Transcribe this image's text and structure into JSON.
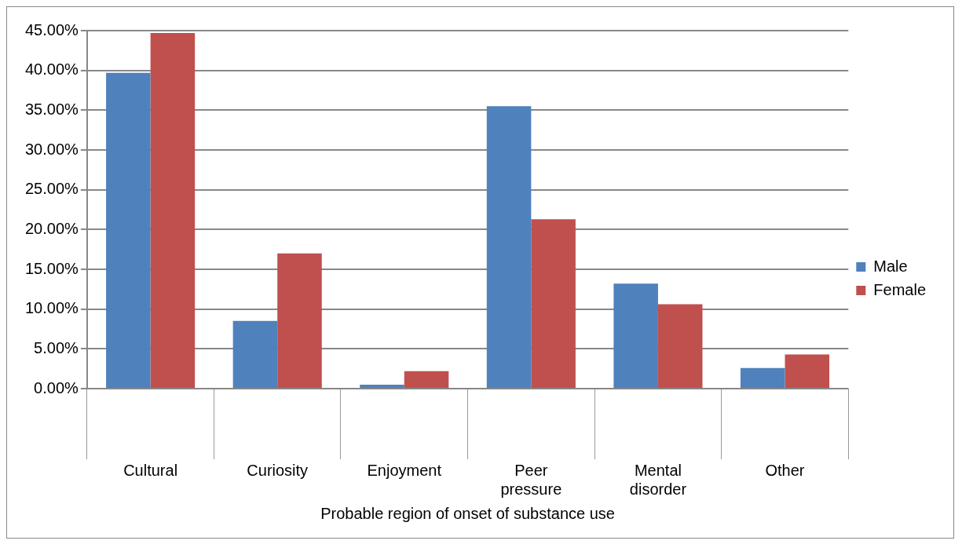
{
  "chart_data": {
    "type": "bar",
    "xlabel": "Probable region of onset of substance use",
    "categories": [
      "Cultural",
      "Curiosity",
      "Enjoyment",
      "Peer pressure",
      "Mental disorder",
      "Other"
    ],
    "series": [
      {
        "name": "Male",
        "color": "#4f81bd",
        "values": [
          39.7,
          8.5,
          0.5,
          35.5,
          13.2,
          2.6
        ]
      },
      {
        "name": "Female",
        "color": "#c0504d",
        "values": [
          44.7,
          17.0,
          2.2,
          21.3,
          10.6,
          4.3
        ]
      }
    ],
    "ylim": [
      0,
      45
    ],
    "yticks": [
      {
        "value": 0,
        "label": "0.00%"
      },
      {
        "value": 5,
        "label": "5.00%"
      },
      {
        "value": 10,
        "label": "10.00%"
      },
      {
        "value": 15,
        "label": "15.00%"
      },
      {
        "value": 20,
        "label": "20.00%"
      },
      {
        "value": 25,
        "label": "25.00%"
      },
      {
        "value": 30,
        "label": "30.00%"
      },
      {
        "value": 35,
        "label": "35.00%"
      },
      {
        "value": 40,
        "label": "40.00%"
      },
      {
        "value": 45,
        "label": "45.00%"
      }
    ],
    "grid": "y",
    "legend": "right"
  }
}
